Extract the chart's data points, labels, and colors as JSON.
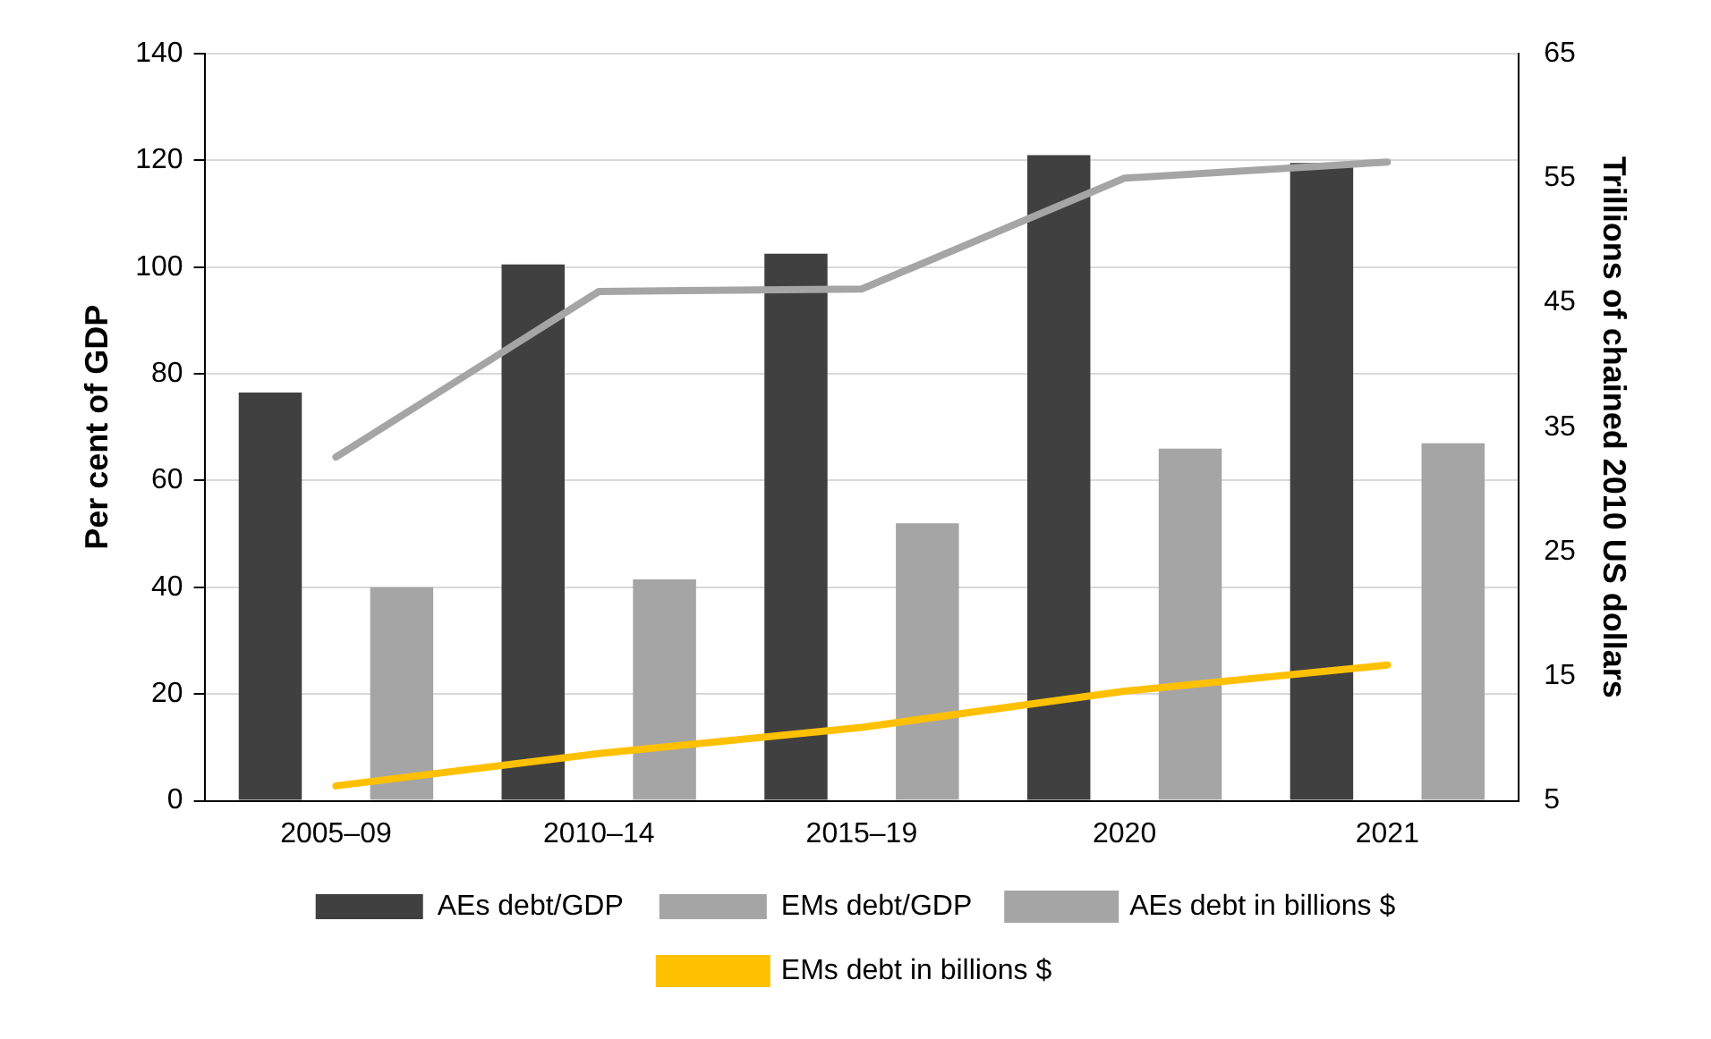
{
  "chart_data": {
    "type": "bar",
    "categories": [
      "2005–09",
      "2010–14",
      "2015–19",
      "2020",
      "2021"
    ],
    "ylabel": "Per cent of GDP",
    "y2label": "Trillions of chained 2010 US dollars",
    "ylim": [
      0,
      140
    ],
    "yticks": [
      0,
      20,
      40,
      60,
      80,
      100,
      120,
      140
    ],
    "y2lim": [
      5,
      65
    ],
    "y2ticks": [
      5,
      15,
      25,
      35,
      45,
      55,
      65
    ],
    "grid": "y",
    "legend": "bottom",
    "series": [
      {
        "name": "AEs debt/GDP",
        "color": "#404040",
        "values": [
          76.5,
          100.5,
          102.5,
          121,
          119.5
        ]
      },
      {
        "name": "EMs debt/GDP",
        "color": "#a5a5a5",
        "values": [
          40,
          41.5,
          52,
          66,
          67
        ]
      },
      {
        "name": "AEs debt in billions $",
        "type": "line",
        "axis": "y2",
        "color": "#a5a5a5",
        "values": [
          32.6,
          45.9,
          46.1,
          55,
          56.3
        ]
      },
      {
        "name": "EMs debt in billions $",
        "type": "line",
        "axis": "y2",
        "color": "#ffc000",
        "values": [
          6.2,
          8.8,
          10.9,
          13.8,
          15.9
        ]
      }
    ]
  }
}
